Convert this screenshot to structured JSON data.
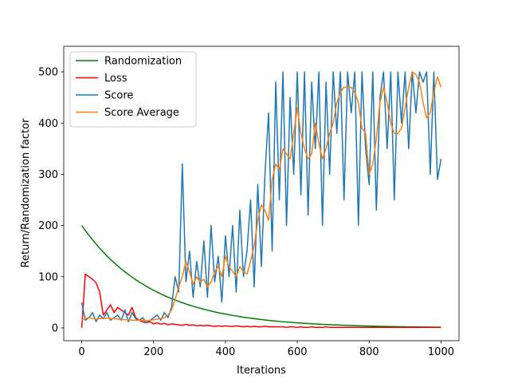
{
  "chart_data": {
    "type": "line",
    "xlabel": "Iterations",
    "ylabel": "Return/Randomization factor",
    "x": [
      0,
      10,
      20,
      30,
      40,
      50,
      60,
      70,
      80,
      90,
      100,
      110,
      120,
      130,
      140,
      150,
      160,
      170,
      180,
      190,
      200,
      210,
      220,
      230,
      240,
      250,
      260,
      270,
      280,
      290,
      300,
      310,
      320,
      330,
      340,
      350,
      360,
      370,
      380,
      390,
      400,
      410,
      420,
      430,
      440,
      450,
      460,
      470,
      480,
      490,
      500,
      510,
      520,
      530,
      540,
      550,
      560,
      570,
      580,
      590,
      600,
      610,
      620,
      630,
      640,
      650,
      660,
      670,
      680,
      690,
      700,
      710,
      720,
      730,
      740,
      750,
      760,
      770,
      780,
      790,
      800,
      810,
      820,
      830,
      840,
      850,
      860,
      870,
      880,
      890,
      900,
      910,
      920,
      930,
      940,
      950,
      960,
      970,
      980,
      990,
      1000
    ],
    "series": [
      {
        "name": "Randomization",
        "color": "#008000",
        "values": [
          200,
          190.2,
          181,
          172.1,
          163.7,
          155.6,
          148,
          140.8,
          133.9,
          127.4,
          121.2,
          115.2,
          109.6,
          104.3,
          99.2,
          94.3,
          89.7,
          85.4,
          81.2,
          77.2,
          73.4,
          69.9,
          66.4,
          63.2,
          60.1,
          57.2,
          54.4,
          51.7,
          49.2,
          46.8,
          44.5,
          42.3,
          40.3,
          38.3,
          36.4,
          34.7,
          33,
          31.3,
          29.8,
          28.4,
          27,
          25.7,
          24.4,
          23.2,
          22.1,
          21,
          20,
          19,
          18.1,
          17.2,
          16.3,
          15.6,
          14.8,
          14.1,
          13.4,
          12.7,
          12.1,
          11.5,
          11,
          10.4,
          9.9,
          9.4,
          9,
          8.5,
          8.1,
          7.7,
          7.3,
          7,
          6.6,
          6.3,
          6,
          5.7,
          5.4,
          5.2,
          4.9,
          4.7,
          4.5,
          4.2,
          4,
          3.8,
          3.6,
          3.5,
          3.3,
          3.1,
          3,
          2.8,
          2.7,
          2.6,
          2.4,
          2.3,
          2.2,
          2.1,
          2,
          1.9,
          1.8,
          1.7,
          1.6,
          1.6,
          1.5,
          1.4,
          1.3
        ]
      },
      {
        "name": "Loss",
        "color": "#ff0000",
        "values": [
          0,
          105,
          100,
          95,
          88,
          70,
          25,
          35,
          45,
          30,
          40,
          35,
          30,
          25,
          40,
          20,
          15,
          12,
          10,
          12,
          8,
          10,
          7,
          9,
          6,
          8,
          7,
          6,
          5,
          7,
          5,
          6,
          4,
          5,
          4,
          5,
          4,
          3,
          4,
          3,
          4,
          3,
          3,
          4,
          3,
          2,
          3,
          2,
          3,
          2,
          2,
          3,
          2,
          2,
          2,
          2,
          2,
          1,
          2,
          2,
          1,
          2,
          1,
          1,
          2,
          1,
          1,
          1,
          2,
          1,
          1,
          1,
          1,
          1,
          1,
          1,
          1,
          1,
          1,
          1,
          1,
          1,
          1,
          1,
          1,
          1,
          1,
          1,
          1,
          1,
          1,
          1,
          1,
          1,
          1,
          1,
          1,
          1,
          1,
          1,
          1
        ]
      },
      {
        "name": "Score",
        "color": "#1f77b4",
        "values": [
          50,
          15,
          20,
          30,
          12,
          25,
          18,
          30,
          15,
          20,
          25,
          15,
          35,
          12,
          30,
          18,
          15,
          20,
          10,
          15,
          20,
          25,
          15,
          30,
          20,
          40,
          100,
          70,
          320,
          90,
          150,
          60,
          130,
          80,
          170,
          60,
          200,
          90,
          140,
          50,
          180,
          100,
          200,
          70,
          230,
          100,
          150,
          250,
          80,
          280,
          120,
          300,
          420,
          150,
          480,
          250,
          500,
          200,
          450,
          300,
          500,
          260,
          500,
          220,
          480,
          350,
          500,
          200,
          480,
          300,
          500,
          380,
          500,
          250,
          500,
          420,
          500,
          200,
          500,
          350,
          280,
          500,
          230,
          450,
          500,
          350,
          500,
          250,
          500,
          400,
          500,
          350,
          500,
          420,
          500,
          480,
          500,
          300,
          500,
          290,
          330
        ]
      },
      {
        "name": "Score Average",
        "color": "#ff7f0e",
        "values": [
          15,
          18,
          20,
          18,
          17,
          18,
          18,
          19,
          18,
          18,
          17,
          17,
          16,
          16,
          15,
          15,
          15,
          15,
          14,
          15,
          16,
          17,
          18,
          20,
          25,
          35,
          55,
          80,
          100,
          130,
          110,
          85,
          100,
          90,
          95,
          80,
          90,
          110,
          120,
          100,
          140,
          120,
          110,
          100,
          120,
          110,
          105,
          130,
          160,
          210,
          240,
          230,
          210,
          290,
          320,
          310,
          350,
          340,
          330,
          380,
          430,
          380,
          350,
          330,
          340,
          400,
          360,
          330,
          350,
          380,
          400,
          440,
          460,
          470,
          470,
          470,
          460,
          440,
          390,
          380,
          300,
          320,
          370,
          440,
          470,
          440,
          400,
          380,
          380,
          390,
          430,
          470,
          500,
          495,
          480,
          440,
          410,
          420,
          460,
          490,
          470
        ]
      }
    ],
    "xlim": [
      -50,
      1050
    ],
    "xticks": [
      0,
      200,
      400,
      600,
      800,
      1000
    ],
    "ylim": [
      -25,
      550
    ],
    "yticks": [
      0,
      100,
      200,
      300,
      400,
      500
    ],
    "legend": "upper left",
    "grid": false
  }
}
